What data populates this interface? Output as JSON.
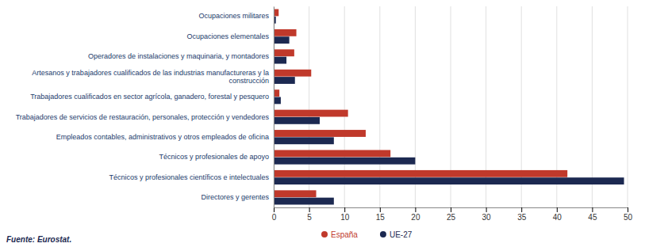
{
  "chart_data": {
    "type": "bar",
    "orientation": "horizontal",
    "categories": [
      "Ocupaciones militares",
      "Ocupaciones elementales",
      "Operadores de instalaciones y maquinaria, y montadores",
      "Artesanos y trabajadores cualificados de las industrias manufactureras y la construcción",
      "Trabajadores cualificados en sector agrícola, ganadero, forestal y pesquero",
      "Trabajadores de servicios de restauración, personales, protección y vendedores",
      "Empleados contables, administrativos y otros empleados de oficina",
      "Técnicos y profesionales de apoyo",
      "Técnicos y profesionales científicos e intelectuales",
      "Directores y gerentes"
    ],
    "series": [
      {
        "name": "España",
        "color": "#c0392b",
        "values": [
          0.7,
          3.2,
          2.9,
          5.3,
          0.8,
          10.5,
          13.0,
          16.5,
          41.5,
          6.0
        ]
      },
      {
        "name": "UE-27",
        "color": "#1c2951",
        "values": [
          0.3,
          2.2,
          1.8,
          3.0,
          1.0,
          6.5,
          8.5,
          20.0,
          49.5,
          8.5
        ]
      }
    ],
    "xlim": [
      0,
      50
    ],
    "xticks": [
      0,
      5,
      10,
      15,
      20,
      25,
      30,
      35,
      40,
      45,
      50
    ],
    "grid": true,
    "legend": "bottom",
    "annotations": [
      "Fuente: Eurostat."
    ]
  }
}
